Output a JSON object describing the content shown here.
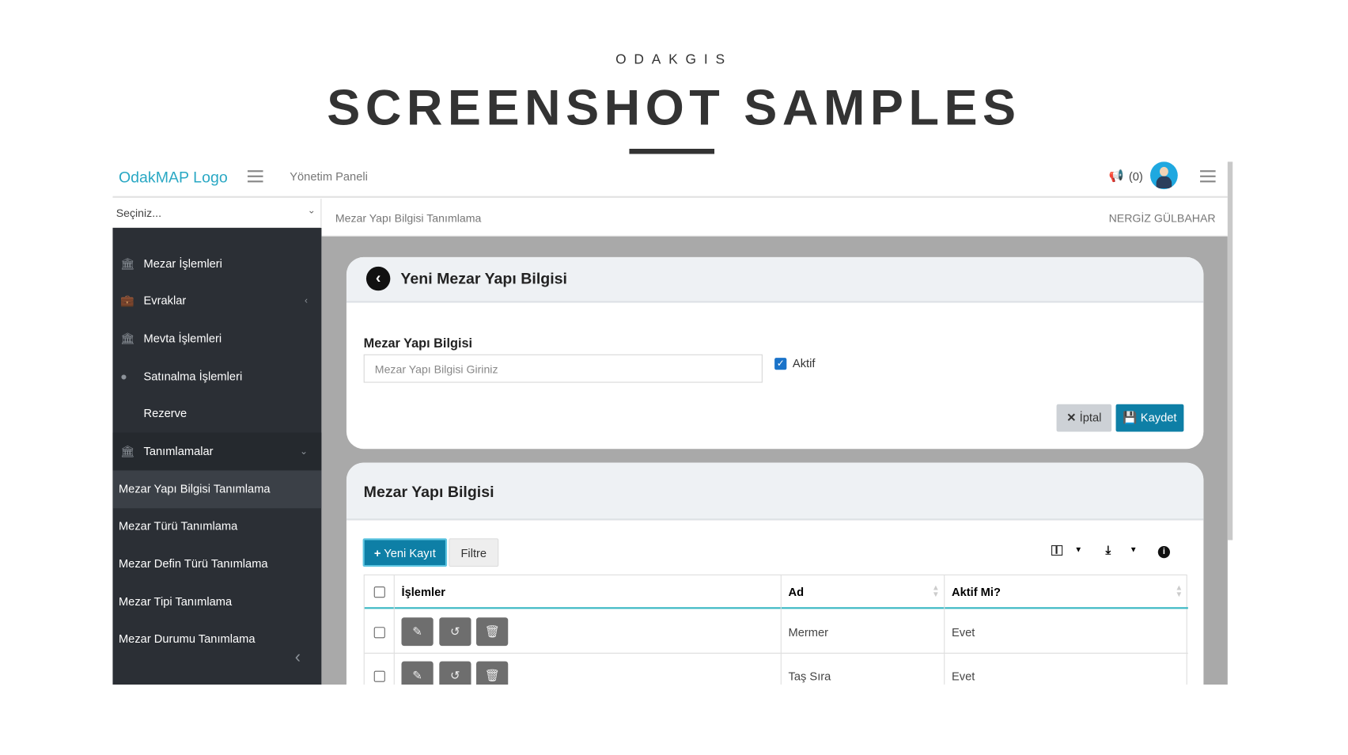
{
  "banner": {
    "brand": "ODAKGIS",
    "headline": "SCREENSHOT SAMPLES"
  },
  "header": {
    "logo": "OdakMAP Logo",
    "panel": "Yönetim Paneli",
    "notifications": "(0)",
    "user": "NERGİZ GÜLBAHAR"
  },
  "select": {
    "value": "Seçiniz..."
  },
  "breadcrumb": "Mezar Yapı Bilgisi Tanımlama",
  "sidebar": {
    "items": [
      {
        "label": "Mezar İşlemleri",
        "icon": "bank-icon"
      },
      {
        "label": "Evraklar",
        "icon": "briefcase-icon"
      },
      {
        "label": "Mevta İşlemleri",
        "icon": "bank-icon"
      },
      {
        "label": "Satınalma İşlemleri",
        "icon": "coin-icon"
      },
      {
        "label": "Rezerve",
        "icon": ""
      },
      {
        "label": "Tanımlamalar",
        "icon": "bank-icon"
      }
    ],
    "subitems": [
      "Mezar Yapı Bilgisi Tanımlama",
      "Mezar Türü Tanımlama",
      "Mezar Defin Türü Tanımlama",
      "Mezar Tipi Tanımlama",
      "Mezar Durumu Tanımlama"
    ]
  },
  "form": {
    "title": "Yeni Mezar Yapı Bilgisi",
    "label": "Mezar Yapı Bilgisi",
    "placeholder": "Mezar Yapı Bilgisi Giriniz",
    "checkbox_label": "Aktif",
    "checked": true,
    "cancel": "İptal",
    "save": "Kaydet"
  },
  "list": {
    "title": "Mezar Yapı Bilgisi",
    "new": "Yeni Kayıt",
    "filter": "Filtre",
    "columns": [
      "İşlemler",
      "Ad",
      "Aktif Mi?"
    ],
    "rows": [
      {
        "ad": "Mermer",
        "aktif": "Evet"
      },
      {
        "ad": "Taş Sıra",
        "aktif": "Evet"
      }
    ]
  },
  "colors": {
    "accent": "#0e7fa6",
    "logo": "#2aa8c4",
    "sidebar": "#2b2f35",
    "table_rule": "#3bb8c4"
  }
}
